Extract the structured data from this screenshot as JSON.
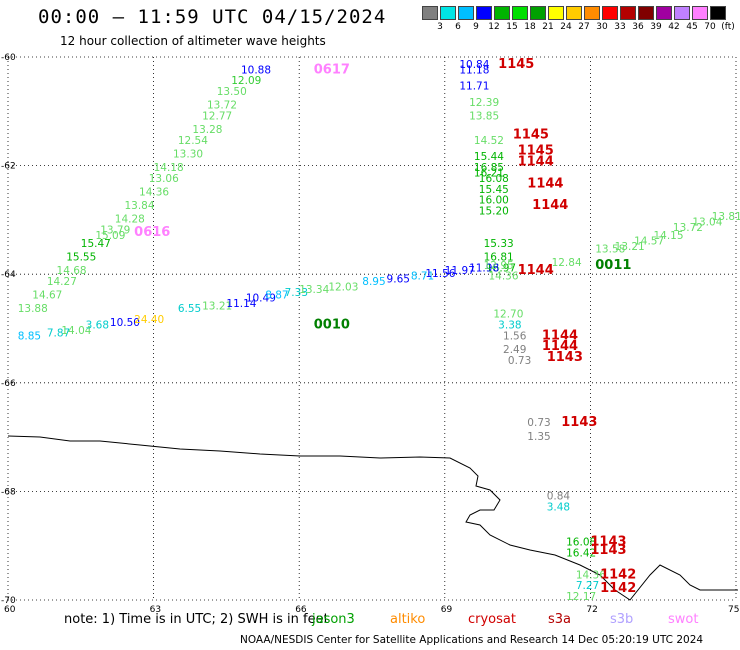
{
  "title": "00:00 – 11:59 UTC 04/15/2024",
  "subtitle": "12 hour collection of altimeter wave heights",
  "colorbar": {
    "colors": [
      "#808080",
      "#00e5e5",
      "#00bfff",
      "#0000ff",
      "#00b400",
      "#00e000",
      "#00a000",
      "#ffff00",
      "#ffcc00",
      "#ff8c00",
      "#ff0000",
      "#b40000",
      "#800000",
      "#a000a0",
      "#c080ff",
      "#ff80ff",
      "#000000"
    ],
    "labels": [
      "3",
      "6",
      "9",
      "12",
      "15",
      "18",
      "21",
      "24",
      "27",
      "30",
      "33",
      "36",
      "39",
      "42",
      "45",
      "70",
      "(ft)"
    ]
  },
  "axes": {
    "y_ticks": [
      "-60",
      "-62",
      "-64",
      "-66",
      "-68",
      "-70"
    ],
    "x_ticks": [
      "60",
      "63",
      "66",
      "69",
      "72",
      "75"
    ]
  },
  "footer": {
    "note": "note:  1) Time is in UTC; 2) SWH is in feet",
    "satellites": [
      {
        "name": "jason3",
        "color": "#00a000"
      },
      {
        "name": "altiko",
        "color": "#ff8c00"
      },
      {
        "name": "cryosat",
        "color": "#d00000"
      },
      {
        "name": "s3a",
        "color": "#b40000"
      },
      {
        "name": "s3b",
        "color": "#b0a0ff"
      },
      {
        "name": "swot",
        "color": "#ff80ff"
      }
    ],
    "credit": "NOAA/NESDIS Center for Satellite Applications and Research    14 Dec 05:20:19 UTC 2024"
  },
  "time_tags": [
    {
      "text": "0617",
      "lon": 66.3,
      "lat": -60.3,
      "color": "#ff80ff"
    },
    {
      "text": "0616",
      "lon": 62.6,
      "lat": -63.3,
      "color": "#ff80ff"
    },
    {
      "text": "1145",
      "lon": 70.1,
      "lat": -60.2,
      "color": "#d00000"
    },
    {
      "text": "1145",
      "lon": 70.4,
      "lat": -61.5,
      "color": "#d00000"
    },
    {
      "text": "1145",
      "lon": 70.5,
      "lat": -61.8,
      "color": "#d00000"
    },
    {
      "text": "1144",
      "lon": 70.5,
      "lat": -62.0,
      "color": "#d00000"
    },
    {
      "text": "1144",
      "lon": 70.7,
      "lat": -62.4,
      "color": "#d00000"
    },
    {
      "text": "1144",
      "lon": 70.8,
      "lat": -62.8,
      "color": "#d00000"
    },
    {
      "text": "1144",
      "lon": 70.5,
      "lat": -64.0,
      "color": "#d00000"
    },
    {
      "text": "0011",
      "lon": 72.1,
      "lat": -63.9,
      "color": "#008000"
    },
    {
      "text": "0010",
      "lon": 66.3,
      "lat": -65.0,
      "color": "#008000"
    },
    {
      "text": "1144",
      "lon": 71.0,
      "lat": -65.2,
      "color": "#d00000"
    },
    {
      "text": "1144",
      "lon": 71.0,
      "lat": -65.4,
      "color": "#d00000"
    },
    {
      "text": "1143",
      "lon": 71.1,
      "lat": -65.6,
      "color": "#d00000"
    },
    {
      "text": "1143",
      "lon": 71.4,
      "lat": -66.8,
      "color": "#d00000"
    },
    {
      "text": "1143",
      "lon": 72.0,
      "lat": -69.0,
      "color": "#d00000"
    },
    {
      "text": "1143",
      "lon": 72.0,
      "lat": -69.15,
      "color": "#d00000"
    },
    {
      "text": "1142",
      "lon": 72.2,
      "lat": -69.6,
      "color": "#d00000"
    },
    {
      "text": "1142",
      "lon": 72.2,
      "lat": -69.85,
      "color": "#d00000"
    }
  ],
  "wave_heights": [
    {
      "v": "10.88",
      "lon": 64.8,
      "lat": -60.3,
      "c": "#0000ff"
    },
    {
      "v": "12.09",
      "lon": 64.6,
      "lat": -60.5,
      "c": "#33cc33"
    },
    {
      "v": "13.50",
      "lon": 64.3,
      "lat": -60.7,
      "c": "#66dd66"
    },
    {
      "v": "13.72",
      "lon": 64.1,
      "lat": -60.95,
      "c": "#66dd66"
    },
    {
      "v": "12.77",
      "lon": 64.0,
      "lat": -61.15,
      "c": "#66dd66"
    },
    {
      "v": "13.28",
      "lon": 63.8,
      "lat": -61.4,
      "c": "#66dd66"
    },
    {
      "v": "12.54",
      "lon": 63.5,
      "lat": -61.6,
      "c": "#66dd66"
    },
    {
      "v": "13.30",
      "lon": 63.4,
      "lat": -61.85,
      "c": "#66dd66"
    },
    {
      "v": "14.18",
      "lon": 63.0,
      "lat": -62.1,
      "c": "#66dd66"
    },
    {
      "v": "13.06",
      "lon": 62.9,
      "lat": -62.3,
      "c": "#66dd66"
    },
    {
      "v": "14.36",
      "lon": 62.7,
      "lat": -62.55,
      "c": "#66dd66"
    },
    {
      "v": "13.84",
      "lon": 62.4,
      "lat": -62.8,
      "c": "#66dd66"
    },
    {
      "v": "14.28",
      "lon": 62.2,
      "lat": -63.05,
      "c": "#66dd66"
    },
    {
      "v": "13.79",
      "lon": 61.9,
      "lat": -63.25,
      "c": "#66dd66"
    },
    {
      "v": "15.09",
      "lon": 61.8,
      "lat": -63.35,
      "c": "#66dd66"
    },
    {
      "v": "15.47",
      "lon": 61.5,
      "lat": -63.5,
      "c": "#00b400"
    },
    {
      "v": "15.55",
      "lon": 61.2,
      "lat": -63.75,
      "c": "#00b400"
    },
    {
      "v": "14.68",
      "lon": 61.0,
      "lat": -64.0,
      "c": "#66dd66"
    },
    {
      "v": "14.27",
      "lon": 60.8,
      "lat": -64.2,
      "c": "#66dd66"
    },
    {
      "v": "14.67",
      "lon": 60.5,
      "lat": -64.45,
      "c": "#66dd66"
    },
    {
      "v": "13.88",
      "lon": 60.2,
      "lat": -64.7,
      "c": "#66dd66"
    },
    {
      "v": "10.84",
      "lon": 69.3,
      "lat": -60.2,
      "c": "#0000ff"
    },
    {
      "v": "11.18",
      "lon": 69.3,
      "lat": -60.3,
      "c": "#0000ff"
    },
    {
      "v": "11.71",
      "lon": 69.3,
      "lat": -60.6,
      "c": "#0000ff"
    },
    {
      "v": "12.39",
      "lon": 69.5,
      "lat": -60.9,
      "c": "#66dd66"
    },
    {
      "v": "13.85",
      "lon": 69.5,
      "lat": -61.15,
      "c": "#66dd66"
    },
    {
      "v": "14.52",
      "lon": 69.6,
      "lat": -61.6,
      "c": "#66dd66"
    },
    {
      "v": "15.44",
      "lon": 69.6,
      "lat": -61.9,
      "c": "#00b400"
    },
    {
      "v": "16.85",
      "lon": 69.6,
      "lat": -62.1,
      "c": "#00b400"
    },
    {
      "v": "16.21",
      "lon": 69.6,
      "lat": -62.2,
      "c": "#00b400"
    },
    {
      "v": "16.08",
      "lon": 69.7,
      "lat": -62.3,
      "c": "#00b400"
    },
    {
      "v": "15.45",
      "lon": 69.7,
      "lat": -62.5,
      "c": "#00b400"
    },
    {
      "v": "16.00",
      "lon": 69.7,
      "lat": -62.7,
      "c": "#00b400"
    },
    {
      "v": "15.20",
      "lon": 69.7,
      "lat": -62.9,
      "c": "#00b400"
    },
    {
      "v": "15.33",
      "lon": 69.8,
      "lat": -63.5,
      "c": "#00b400"
    },
    {
      "v": "16.81",
      "lon": 69.8,
      "lat": -63.75,
      "c": "#00b400"
    },
    {
      "v": "16.97",
      "lon": 69.85,
      "lat": -63.95,
      "c": "#00b400"
    },
    {
      "v": "14.36",
      "lon": 69.9,
      "lat": -64.1,
      "c": "#66dd66"
    },
    {
      "v": "12.70",
      "lon": 70.0,
      "lat": -64.8,
      "c": "#66dd66"
    },
    {
      "v": "3.38",
      "lon": 70.1,
      "lat": -65.0,
      "c": "#00cccc"
    },
    {
      "v": "1.56",
      "lon": 70.2,
      "lat": -65.2,
      "c": "#808080"
    },
    {
      "v": "2.49",
      "lon": 70.2,
      "lat": -65.45,
      "c": "#808080"
    },
    {
      "v": "0.73",
      "lon": 70.3,
      "lat": -65.65,
      "c": "#808080"
    },
    {
      "v": "0.73",
      "lon": 70.7,
      "lat": -66.8,
      "c": "#808080"
    },
    {
      "v": "1.35",
      "lon": 70.7,
      "lat": -67.05,
      "c": "#808080"
    },
    {
      "v": "0.84",
      "lon": 71.1,
      "lat": -68.15,
      "c": "#808080"
    },
    {
      "v": "3.48",
      "lon": 71.1,
      "lat": -68.35,
      "c": "#00cccc"
    },
    {
      "v": "16.08",
      "lon": 71.5,
      "lat": -69.0,
      "c": "#00b400"
    },
    {
      "v": "16.42",
      "lon": 71.5,
      "lat": -69.2,
      "c": "#00b400"
    },
    {
      "v": "14.36",
      "lon": 71.7,
      "lat": -69.6,
      "c": "#66dd66"
    },
    {
      "v": "7.27",
      "lon": 71.7,
      "lat": -69.8,
      "c": "#00cccc"
    },
    {
      "v": "12.17",
      "lon": 71.5,
      "lat": -70.0,
      "c": "#66dd66"
    },
    {
      "v": "8.85",
      "lon": 60.2,
      "lat": -65.2,
      "c": "#00bfff"
    },
    {
      "v": "7.87",
      "lon": 60.8,
      "lat": -65.15,
      "c": "#00cccc"
    },
    {
      "v": "14.04",
      "lon": 61.1,
      "lat": -65.1,
      "c": "#66dd66"
    },
    {
      "v": "3.68",
      "lon": 61.6,
      "lat": -65.0,
      "c": "#00cccc"
    },
    {
      "v": "10.50",
      "lon": 62.1,
      "lat": -64.95,
      "c": "#0000ff"
    },
    {
      "v": "24.40",
      "lon": 62.6,
      "lat": -64.9,
      "c": "#ffcc00"
    },
    {
      "v": "6.55",
      "lon": 63.5,
      "lat": -64.7,
      "c": "#00cccc"
    },
    {
      "v": "13.21",
      "lon": 64.0,
      "lat": -64.65,
      "c": "#66dd66"
    },
    {
      "v": "11.14",
      "lon": 64.5,
      "lat": -64.6,
      "c": "#0000ff"
    },
    {
      "v": "10.49",
      "lon": 64.9,
      "lat": -64.5,
      "c": "#0000ff"
    },
    {
      "v": "8.87",
      "lon": 65.3,
      "lat": -64.45,
      "c": "#00bfff"
    },
    {
      "v": "7.33",
      "lon": 65.7,
      "lat": -64.4,
      "c": "#00cccc"
    },
    {
      "v": "13.34",
      "lon": 66.0,
      "lat": -64.35,
      "c": "#66dd66"
    },
    {
      "v": "12.03",
      "lon": 66.6,
      "lat": -64.3,
      "c": "#66dd66"
    },
    {
      "v": "8.95",
      "lon": 67.3,
      "lat": -64.2,
      "c": "#00bfff"
    },
    {
      "v": "9.65",
      "lon": 67.8,
      "lat": -64.15,
      "c": "#0000ff"
    },
    {
      "v": "8.71",
      "lon": 68.3,
      "lat": -64.1,
      "c": "#00bfff"
    },
    {
      "v": "11.56",
      "lon": 68.6,
      "lat": -64.05,
      "c": "#0000ff"
    },
    {
      "v": "11.97",
      "lon": 69.0,
      "lat": -64.0,
      "c": "#0000ff"
    },
    {
      "v": "11.98",
      "lon": 69.5,
      "lat": -63.95,
      "c": "#0000ff"
    },
    {
      "v": "12.95",
      "lon": 69.8,
      "lat": -63.9,
      "c": "#66dd66"
    },
    {
      "v": "12.84",
      "lon": 71.2,
      "lat": -63.85,
      "c": "#66dd66"
    },
    {
      "v": "13.58",
      "lon": 72.1,
      "lat": -63.6,
      "c": "#66dd66"
    },
    {
      "v": "13.21",
      "lon": 72.5,
      "lat": -63.55,
      "c": "#66dd66"
    },
    {
      "v": "14.57",
      "lon": 72.9,
      "lat": -63.45,
      "c": "#66dd66"
    },
    {
      "v": "14.15",
      "lon": 73.3,
      "lat": -63.35,
      "c": "#66dd66"
    },
    {
      "v": "13.72",
      "lon": 73.7,
      "lat": -63.2,
      "c": "#66dd66"
    },
    {
      "v": "13.04",
      "lon": 74.1,
      "lat": -63.1,
      "c": "#66dd66"
    },
    {
      "v": "13.81",
      "lon": 74.5,
      "lat": -63.0,
      "c": "#66dd66"
    }
  ]
}
